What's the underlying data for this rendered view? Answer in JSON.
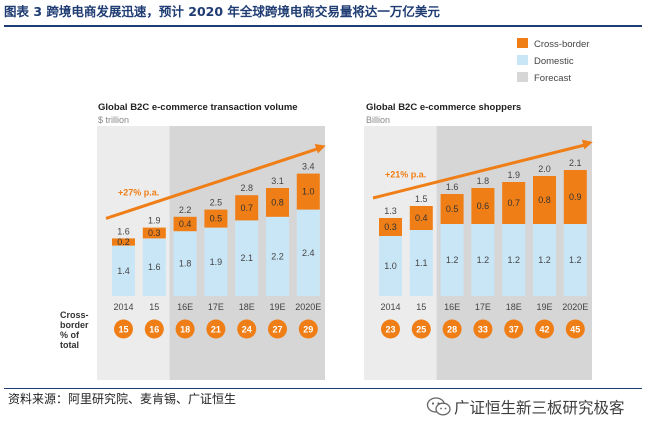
{
  "header": {
    "title": "图表 3 跨境电商发展迅速，预计 2020 年全球跨境电商交易量将达一万亿美元"
  },
  "legend": {
    "items": [
      {
        "label": "Cross-border",
        "color": "#f07e16"
      },
      {
        "label": "Domestic",
        "color": "#c9e6f7"
      },
      {
        "label": "Forecast",
        "color": "#d6d6d6"
      }
    ]
  },
  "side_label": {
    "lines": [
      "Cross-",
      "border",
      "% of",
      "total"
    ]
  },
  "colors": {
    "cross_border": "#f07e16",
    "domestic": "#c9e6f7",
    "forecast": "#d6d6d6",
    "trend_arrow": "#f07e16",
    "badge": "#f07e16"
  },
  "chart_data": [
    {
      "type": "bar",
      "stacked": true,
      "title": "Global B2C e-commerce transaction volume",
      "subtitle": "$ trillion",
      "categories": [
        "2014",
        "15",
        "16E",
        "17E",
        "18E",
        "19E",
        "2020E"
      ],
      "forecast_from_index": 2,
      "series": [
        {
          "name": "Domestic",
          "values": [
            1.4,
            1.6,
            1.8,
            1.9,
            2.1,
            2.2,
            2.4
          ]
        },
        {
          "name": "Cross-border",
          "values": [
            0.2,
            0.3,
            0.4,
            0.5,
            0.7,
            0.8,
            1.0
          ]
        }
      ],
      "totals": [
        1.6,
        1.9,
        2.2,
        2.5,
        2.8,
        3.1,
        3.4
      ],
      "trend_label": "+27% p.a.",
      "cross_border_share_pct": [
        15,
        16,
        18,
        21,
        24,
        27,
        29
      ],
      "ylim": [
        0,
        3.4
      ]
    },
    {
      "type": "bar",
      "stacked": true,
      "title": "Global B2C e-commerce shoppers",
      "subtitle": "Billion",
      "categories": [
        "2014",
        "15",
        "16E",
        "17E",
        "18E",
        "19E",
        "2020E"
      ],
      "forecast_from_index": 2,
      "series": [
        {
          "name": "Domestic",
          "values": [
            1.0,
            1.1,
            1.2,
            1.2,
            1.2,
            1.2,
            1.2
          ]
        },
        {
          "name": "Cross-border",
          "values": [
            0.3,
            0.4,
            0.5,
            0.6,
            0.7,
            0.8,
            0.9
          ]
        }
      ],
      "totals": [
        1.3,
        1.5,
        1.6,
        1.8,
        1.9,
        2.0,
        2.1
      ],
      "trend_label": "+21% p.a.",
      "cross_border_share_pct": [
        23,
        25,
        28,
        33,
        37,
        42,
        45
      ],
      "ylim": [
        0,
        2.1
      ]
    }
  ],
  "footer": {
    "source": "资料来源：阿里研究院、麦肯锡、广证恒生",
    "watermark": "广证恒生新三板研究极客",
    "watermark_icon": "wechat-icon"
  }
}
